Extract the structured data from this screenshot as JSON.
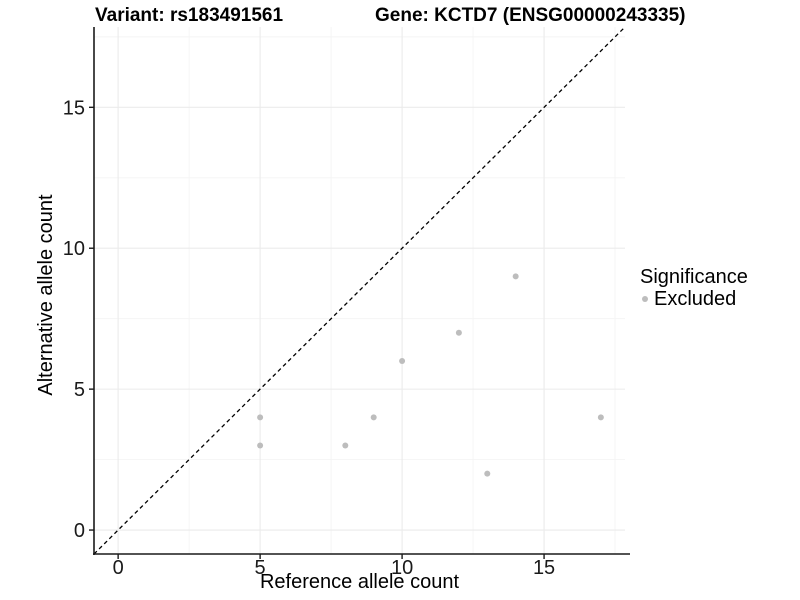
{
  "titles": {
    "variant": "Variant: rs183491561",
    "gene": "Gene: KCTD7 (ENSG00000243335)"
  },
  "legend": {
    "title": "Significance",
    "items": [
      {
        "label": "Excluded",
        "color": "#bdbdbd"
      }
    ]
  },
  "chart_data": {
    "type": "scatter",
    "xlabel": "Reference allele count",
    "ylabel": "Alternative allele count",
    "xlim": [
      -0.85,
      17.85
    ],
    "ylim": [
      -0.85,
      17.85
    ],
    "xticks": [
      0,
      5,
      10,
      15
    ],
    "yticks": [
      0,
      5,
      10,
      15
    ],
    "xticks_minor": [
      2.5,
      7.5,
      12.5,
      17.5
    ],
    "yticks_minor": [
      2.5,
      7.5,
      12.5,
      17.5
    ],
    "grid": "major+minor",
    "legend_position": "right",
    "identity_line": {
      "slope": 1,
      "intercept": 0,
      "style": "dashed"
    },
    "series": [
      {
        "name": "Excluded",
        "color": "#bdbdbd",
        "points": [
          [
            5,
            3
          ],
          [
            5,
            4
          ],
          [
            8,
            3
          ],
          [
            9,
            4
          ],
          [
            10,
            6
          ],
          [
            12,
            7
          ],
          [
            13,
            2
          ],
          [
            14,
            9
          ],
          [
            17,
            4
          ]
        ]
      }
    ]
  },
  "colors": {
    "point": "#bdbdbd",
    "grid_major": "#ebebeb",
    "grid_minor": "#f4f4f4",
    "axis_line": "#1a1a1a",
    "tick_text": "#1a1a1a",
    "title_text": "#000000",
    "identity_line": "#000000",
    "background": "#ffffff"
  }
}
